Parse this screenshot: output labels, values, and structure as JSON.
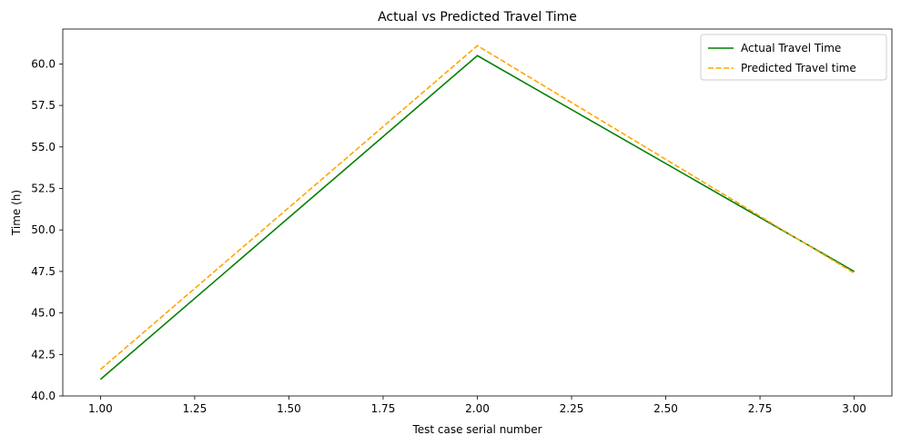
{
  "chart_data": {
    "type": "line",
    "title": "Actual vs Predicted Travel Time",
    "xlabel": "Test case serial number",
    "ylabel": "Time (h)",
    "xlim": [
      0.9,
      3.1
    ],
    "ylim": [
      40.0,
      62.1
    ],
    "xticks": [
      1.0,
      1.25,
      1.5,
      1.75,
      2.0,
      2.25,
      2.5,
      2.75,
      3.0
    ],
    "xtick_labels": [
      "1.00",
      "1.25",
      "1.50",
      "1.75",
      "2.00",
      "2.25",
      "2.50",
      "2.75",
      "3.00"
    ],
    "yticks": [
      40.0,
      42.5,
      45.0,
      47.5,
      50.0,
      52.5,
      55.0,
      57.5,
      60.0
    ],
    "ytick_labels": [
      "40.0",
      "42.5",
      "45.0",
      "47.5",
      "50.0",
      "52.5",
      "55.0",
      "57.5",
      "60.0"
    ],
    "grid": false,
    "legend_position": "top-right",
    "series": [
      {
        "name": "Actual Travel Time",
        "x": [
          1,
          2,
          3
        ],
        "y": [
          41.0,
          60.5,
          47.5
        ],
        "color": "#008000",
        "style": "solid"
      },
      {
        "name": "Predicted Travel time",
        "x": [
          1,
          2,
          3
        ],
        "y": [
          41.6,
          61.1,
          47.4
        ],
        "color": "#ffa500",
        "style": "dashed"
      }
    ]
  }
}
